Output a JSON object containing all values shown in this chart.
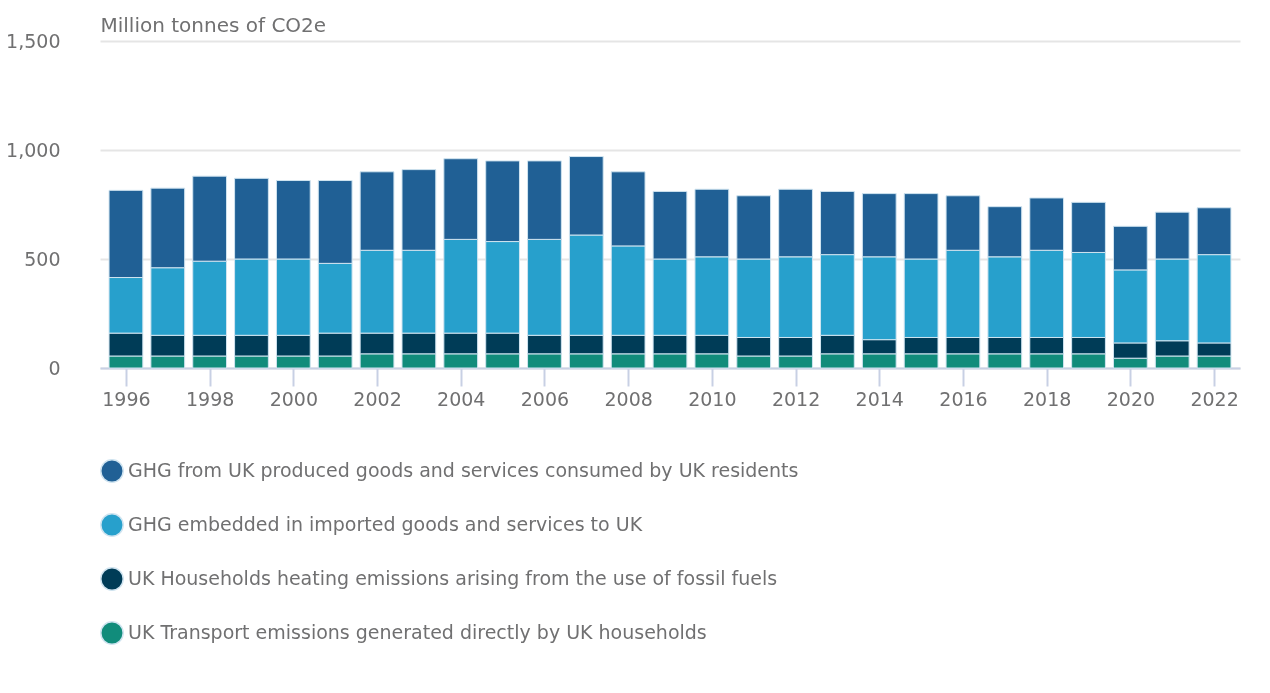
{
  "chart_data": {
    "type": "bar",
    "stacked": true,
    "ylabel": "Million tonnes of CO2e",
    "x": [
      1996,
      1997,
      1998,
      1999,
      2000,
      2001,
      2002,
      2003,
      2004,
      2005,
      2006,
      2007,
      2008,
      2009,
      2010,
      2011,
      2012,
      2013,
      2014,
      2015,
      2016,
      2017,
      2018,
      2019,
      2020,
      2021,
      2022
    ],
    "xlim": [
      1995.5,
      2022.5
    ],
    "xticks": [
      1996,
      1998,
      2000,
      2002,
      2004,
      2006,
      2008,
      2010,
      2012,
      2014,
      2016,
      2018,
      2020,
      2022
    ],
    "ylim": [
      0,
      1500
    ],
    "yticks": [
      0,
      500,
      {
        "value": 1000,
        "label": "1,000"
      },
      {
        "value": 1500,
        "label": "1,500"
      }
    ],
    "grid": "y",
    "legend": "bottom",
    "series": [
      {
        "name": "UK Transport emissions generated directly by UK households",
        "color": "#118c7b",
        "values": [
          55,
          55,
          55,
          55,
          55,
          55,
          65,
          65,
          65,
          65,
          65,
          65,
          65,
          65,
          65,
          55,
          55,
          65,
          65,
          65,
          65,
          65,
          65,
          65,
          45,
          55,
          55
        ]
      },
      {
        "name": "UK Households heating emissions arising from the use of fossil fuels",
        "color": "#003c57",
        "values": [
          105,
          95,
          95,
          95,
          95,
          105,
          95,
          95,
          95,
          95,
          85,
          85,
          85,
          85,
          85,
          85,
          85,
          85,
          65,
          75,
          75,
          75,
          75,
          75,
          70,
          70,
          60
        ]
      },
      {
        "name": "GHG embedded in imported goods and services to UK",
        "color": "#27a0cc",
        "values": [
          255,
          310,
          340,
          350,
          350,
          320,
          380,
          380,
          430,
          420,
          440,
          460,
          410,
          350,
          360,
          360,
          370,
          370,
          380,
          360,
          400,
          370,
          400,
          390,
          335,
          375,
          405
        ]
      },
      {
        "name": "GHG from UK produced goods and services consumed by UK residents",
        "color": "#206095",
        "values": [
          400,
          365,
          390,
          370,
          360,
          380,
          360,
          370,
          370,
          370,
          360,
          360,
          340,
          310,
          310,
          290,
          310,
          290,
          290,
          300,
          250,
          230,
          240,
          230,
          200,
          215,
          215
        ]
      }
    ]
  }
}
